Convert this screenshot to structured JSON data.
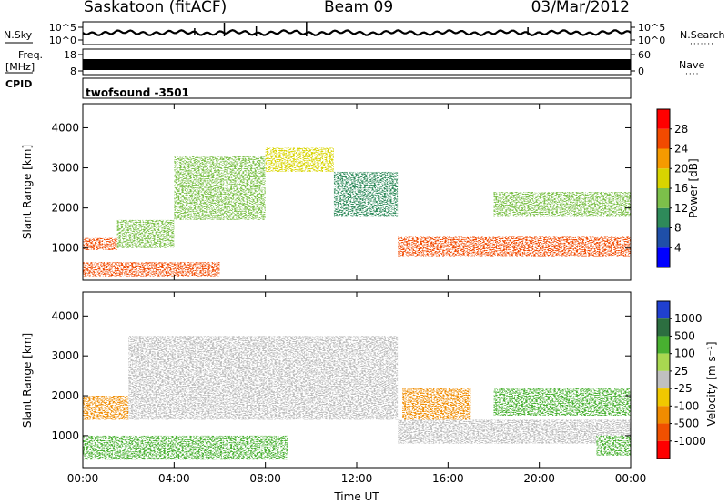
{
  "header": {
    "station": "Saskatoon (fitACF)",
    "beam": "Beam 09",
    "date": "03/Mar/2012"
  },
  "side_labels": {
    "nsky": "N.Sky",
    "nsearch": "N.Search",
    "freq_top": "Freq.",
    "freq_unit": "[MHz]",
    "nave": "Nave",
    "cpid": "CPID",
    "cpid_value": "twofsound -3501"
  },
  "strip_ticks": {
    "noise_left_top": "10^5",
    "noise_left_bottom": "10^0",
    "noise_right_top": "10^5",
    "noise_right_bottom": "10^0",
    "freq_left_top": "18",
    "freq_left_bottom": "8",
    "nave_right_top": "60",
    "nave_right_bottom": "0"
  },
  "colors": {
    "power_scale": [
      "#0000ff",
      "#1f4fa8",
      "#2e8a5a",
      "#7cc04a",
      "#d8d400",
      "#f59a00",
      "#f24a00",
      "#ff0000"
    ],
    "velocity_scale": [
      "#2040d0",
      "#2c6e40",
      "#48b030",
      "#a8d850",
      "#c0c0c0",
      "#f0c800",
      "#f08c00",
      "#f05000",
      "#ff0000"
    ],
    "ground_scatter": "#bcbcbc"
  },
  "chart_data": [
    {
      "type": "heatmap",
      "title": "",
      "xlabel": "",
      "ylabel": "Slant Range [km]",
      "xlim": [
        "00:00",
        "24:00"
      ],
      "ylim": [
        200,
        4600
      ],
      "x_ticks": [
        "00:00",
        "04:00",
        "08:00",
        "12:00",
        "16:00",
        "20:00",
        "00:00"
      ],
      "y_ticks": [
        1000,
        2000,
        3000,
        4000
      ],
      "colorbar": {
        "label": "Power [dB]",
        "ticks": [
          "4",
          "8",
          "12",
          "16",
          "20",
          "24",
          "28"
        ],
        "range": [
          0,
          32
        ]
      },
      "features": [
        {
          "quantity": "power_dB",
          "start_hour": 0,
          "end_hour": 1.5,
          "range_km": [
            950,
            1250
          ],
          "level": 26
        },
        {
          "quantity": "power_dB",
          "start_hour": 1.5,
          "end_hour": 4,
          "range_km": [
            1000,
            1700
          ],
          "level": 14
        },
        {
          "quantity": "power_dB",
          "start_hour": 4,
          "end_hour": 8,
          "range_km": [
            1700,
            3300
          ],
          "level": 12
        },
        {
          "quantity": "power_dB",
          "start_hour": 8,
          "end_hour": 11,
          "range_km": [
            2900,
            3500
          ],
          "level": 16
        },
        {
          "quantity": "power_dB",
          "start_hour": 11,
          "end_hour": 13.8,
          "range_km": [
            1800,
            2900
          ],
          "level": 10
        },
        {
          "quantity": "power_dB",
          "start_hour": 13.8,
          "end_hour": 24,
          "range_km": [
            800,
            1300
          ],
          "level": 26
        },
        {
          "quantity": "power_dB",
          "start_hour": 0,
          "end_hour": 6,
          "range_km": [
            300,
            650
          ],
          "level": 24
        },
        {
          "quantity": "power_dB",
          "start_hour": 18,
          "end_hour": 24,
          "range_km": [
            1800,
            2400
          ],
          "level": 12
        }
      ]
    },
    {
      "type": "heatmap",
      "title": "",
      "xlabel": "Time UT",
      "ylabel": "Slant Range [km]",
      "xlim": [
        "00:00",
        "24:00"
      ],
      "ylim": [
        200,
        4600
      ],
      "x_ticks": [
        "00:00",
        "04:00",
        "08:00",
        "12:00",
        "16:00",
        "20:00",
        "00:00"
      ],
      "y_ticks": [
        1000,
        2000,
        3000,
        4000
      ],
      "colorbar": {
        "label": "Velocity [m s⁻¹]",
        "ticks": [
          "1000",
          "500",
          "100",
          "25",
          "-25",
          "-100",
          "-500",
          "-1000"
        ]
      },
      "features": [
        {
          "quantity": "velocity_ms",
          "start_hour": 0,
          "end_hour": 2,
          "range_km": [
            1400,
            2000
          ],
          "level": -300
        },
        {
          "quantity": "velocity_ms",
          "start_hour": 0,
          "end_hour": 9,
          "range_km": [
            400,
            1000
          ],
          "level": 150
        },
        {
          "quantity": "velocity_ms",
          "start_hour": 2,
          "end_hour": 13.8,
          "range_km": [
            1400,
            3500
          ],
          "level": 0
        },
        {
          "quantity": "velocity_ms",
          "start_hour": 13.8,
          "end_hour": 24,
          "range_km": [
            800,
            1400
          ],
          "level": 0
        },
        {
          "quantity": "velocity_ms",
          "start_hour": 14,
          "end_hour": 17,
          "range_km": [
            1400,
            2200
          ],
          "level": -300
        },
        {
          "quantity": "velocity_ms",
          "start_hour": 18,
          "end_hour": 24,
          "range_km": [
            1500,
            2200
          ],
          "level": 100
        },
        {
          "quantity": "velocity_ms",
          "start_hour": 22.5,
          "end_hour": 24,
          "range_km": [
            500,
            1000
          ],
          "level": 150
        }
      ]
    }
  ]
}
